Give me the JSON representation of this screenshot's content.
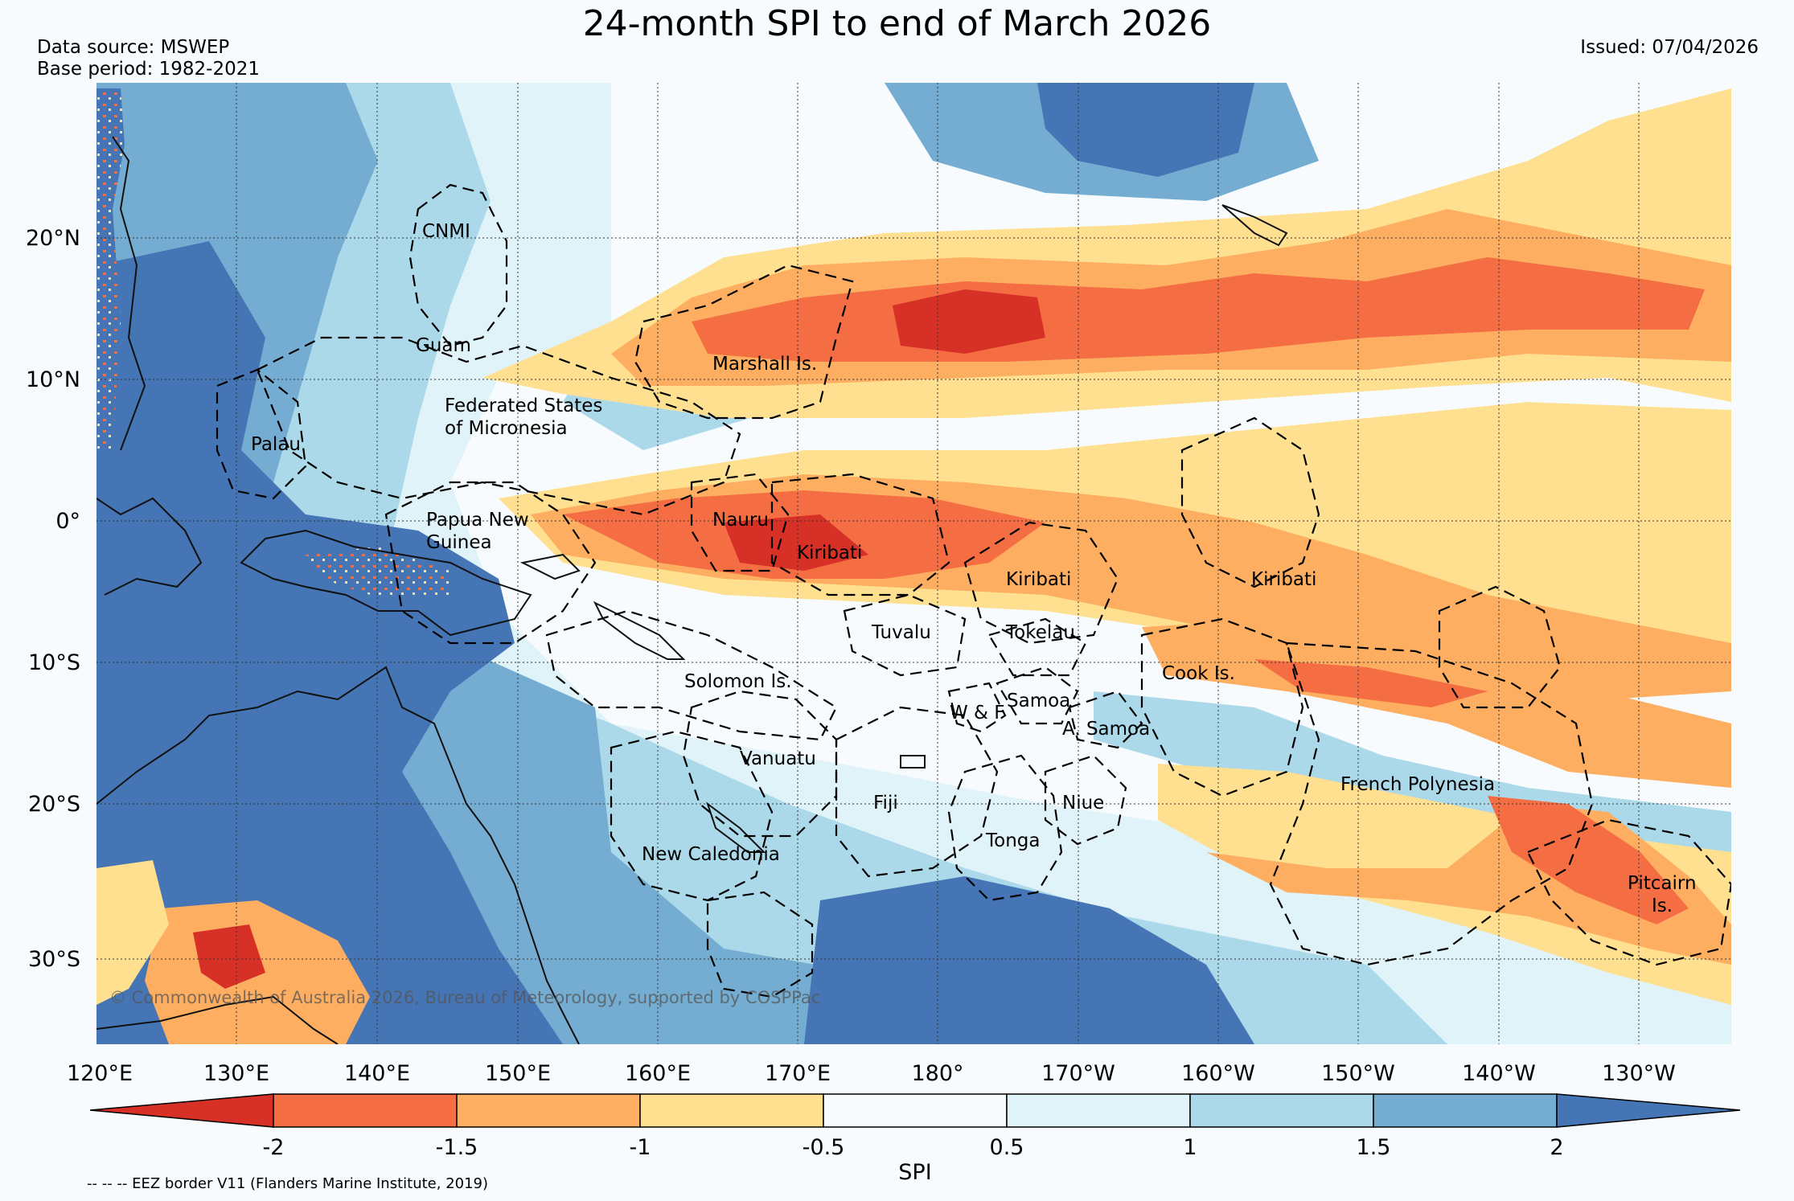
{
  "title": "24-month SPI to end of March 2026",
  "data_source": "Data source: MSWEP",
  "base_period": "Base period: 1982-2021",
  "issued": "Issued: 07/04/2026",
  "copyright": "© Commonwealth of Australia 2026, Bureau of Meteorology, supported by COSPPac",
  "footnote": "-- -- -- EEZ border V11 (Flanders Marine Institute, 2019)",
  "lat_ticks": [
    "20°N",
    "10°N",
    "0°",
    "10°S",
    "20°S",
    "30°S"
  ],
  "lon_ticks": [
    "120°E",
    "130°E",
    "140°E",
    "150°E",
    "160°E",
    "170°E",
    "180°",
    "170°W",
    "160°W",
    "150°W",
    "140°W",
    "130°W"
  ],
  "regions": [
    {
      "name": "CNMI",
      "lines": [
        "CNMI"
      ]
    },
    {
      "name": "Guam",
      "lines": [
        "Guam"
      ]
    },
    {
      "name": "Marshall Is.",
      "lines": [
        "Marshall Is."
      ]
    },
    {
      "name": "Federated States of Micronesia",
      "lines": [
        "Federated States",
        "of Micronesia"
      ]
    },
    {
      "name": "Palau",
      "lines": [
        "Palau"
      ]
    },
    {
      "name": "Papua New Guinea",
      "lines": [
        "Papua New",
        "Guinea"
      ]
    },
    {
      "name": "Nauru",
      "lines": [
        "Nauru"
      ]
    },
    {
      "name": "Kiribati",
      "lines": [
        "Kiribati"
      ]
    },
    {
      "name": "Kiribati",
      "lines": [
        "Kiribati"
      ]
    },
    {
      "name": "Kiribati",
      "lines": [
        "Kiribati"
      ]
    },
    {
      "name": "Tuvalu",
      "lines": [
        "Tuvalu"
      ]
    },
    {
      "name": "Tokelau",
      "lines": [
        "Tokelau"
      ]
    },
    {
      "name": "Solomon Is.",
      "lines": [
        "Solomon Is."
      ]
    },
    {
      "name": "Cook Is.",
      "lines": [
        "Cook Is."
      ]
    },
    {
      "name": "Samoa",
      "lines": [
        "Samoa"
      ]
    },
    {
      "name": "W & F",
      "lines": [
        "W & F"
      ]
    },
    {
      "name": "A. Samoa",
      "lines": [
        "A. Samoa"
      ]
    },
    {
      "name": "Vanuatu",
      "lines": [
        "Vanuatu"
      ]
    },
    {
      "name": "Fiji",
      "lines": [
        "Fiji"
      ]
    },
    {
      "name": "Niue",
      "lines": [
        "Niue"
      ]
    },
    {
      "name": "Tonga",
      "lines": [
        "Tonga"
      ]
    },
    {
      "name": "New Caledonia",
      "lines": [
        "New Caledonia"
      ]
    },
    {
      "name": "French Polynesia",
      "lines": [
        "French Polynesia"
      ]
    },
    {
      "name": "Pitcairn Is.",
      "lines": [
        "Pitcairn",
        "Is."
      ]
    }
  ],
  "colorbar": {
    "label": "SPI",
    "tick_labels": [
      "-2",
      "-1.5",
      "-1",
      "-0.5",
      "0.5",
      "1",
      "1.5",
      "2"
    ],
    "colors": {
      "extreme_dry": "#d73027",
      "severe_dry": "#f46d43",
      "moderate_dry": "#fdae61",
      "mild_dry": "#fee090",
      "near_normal": "#f7fbfd",
      "mild_wet": "#e0f3f8",
      "moderate_wet": "#abd9e9",
      "severe_wet": "#74add1",
      "extreme_wet": "#4575b4"
    }
  }
}
